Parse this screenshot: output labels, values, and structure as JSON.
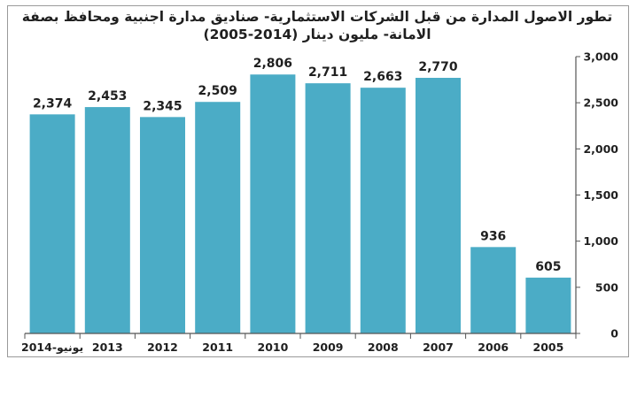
{
  "chart_data": {
    "type": "bar",
    "title_line1": "تطور الاصول المدارة من قبل الشركات الاستثمارية- صناديق مدارة اجنبية ومحافظ بصفة",
    "title_line2": "الامانة- مليون دينار (2014-2005)",
    "categories": [
      "يونيو-2014",
      "2013",
      "2012",
      "2011",
      "2010",
      "2009",
      "2008",
      "2007",
      "2006",
      "2005"
    ],
    "values": [
      2374,
      2453,
      2345,
      2509,
      2806,
      2711,
      2663,
      2770,
      936,
      605
    ],
    "value_labels": [
      "2,374",
      "2,453",
      "2,345",
      "2,509",
      "2,806",
      "2,711",
      "2,663",
      "2,770",
      "936",
      "605"
    ],
    "ylim": [
      0,
      3000
    ],
    "yticks": [
      0,
      500,
      1000,
      1500,
      2000,
      2500,
      3000
    ],
    "ytick_labels": [
      "0",
      "500",
      "1,000",
      "1,500",
      "2,000",
      "2,500",
      "3,000"
    ],
    "y_axis_side": "right",
    "grid": false,
    "legend": "none",
    "bar_color": "#4BACC6"
  }
}
